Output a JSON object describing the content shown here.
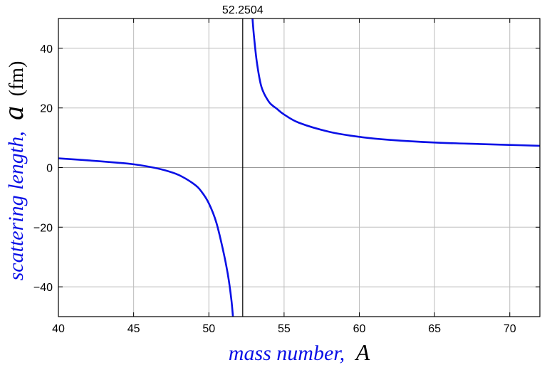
{
  "chart_data": {
    "type": "line",
    "xlabel": {
      "prefix": "mass number,",
      "variable": "A"
    },
    "ylabel": {
      "prefix": "scattering length,",
      "variable": "a",
      "unit": "(fm)"
    },
    "xlim": [
      40,
      72
    ],
    "ylim": [
      -50,
      50
    ],
    "xticks": [
      40,
      45,
      50,
      55,
      60,
      65,
      70
    ],
    "yticks": [
      -40,
      -20,
      0,
      20,
      40
    ],
    "grid": true,
    "asymptote": {
      "x": 52.2504,
      "label": "52.2504"
    },
    "series": [
      {
        "color": "#0a10e6",
        "segments": [
          {
            "x": [
              40,
              42,
              44,
              45,
              46,
              47,
              48,
              49,
              49.5,
              50,
              50.5,
              51,
              51.3,
              51.5,
              51.6
            ],
            "y": [
              3.1,
              2.4,
              1.6,
              1.1,
              0.3,
              -0.8,
              -2.5,
              -5.5,
              -8.0,
              -12.0,
              -18.5,
              -29.0,
              -37.0,
              -44.5,
              -50
            ]
          },
          {
            "x": [
              52.9,
              53.0,
              53.2,
              53.5,
              54,
              54.5,
              55,
              56,
              58,
              60,
              62,
              65,
              68,
              70,
              72
            ],
            "y": [
              50,
              44.0,
              35.0,
              27.0,
              22.0,
              19.8,
              17.8,
              15.0,
              12.0,
              10.3,
              9.3,
              8.4,
              7.9,
              7.6,
              7.3
            ]
          }
        ]
      }
    ],
    "colors": {
      "curve": "#0a10e6",
      "axis_title": "#0a10e6",
      "grid": "#bdbdbd",
      "zero_line": "#999999",
      "asymptote": "#000000"
    }
  }
}
